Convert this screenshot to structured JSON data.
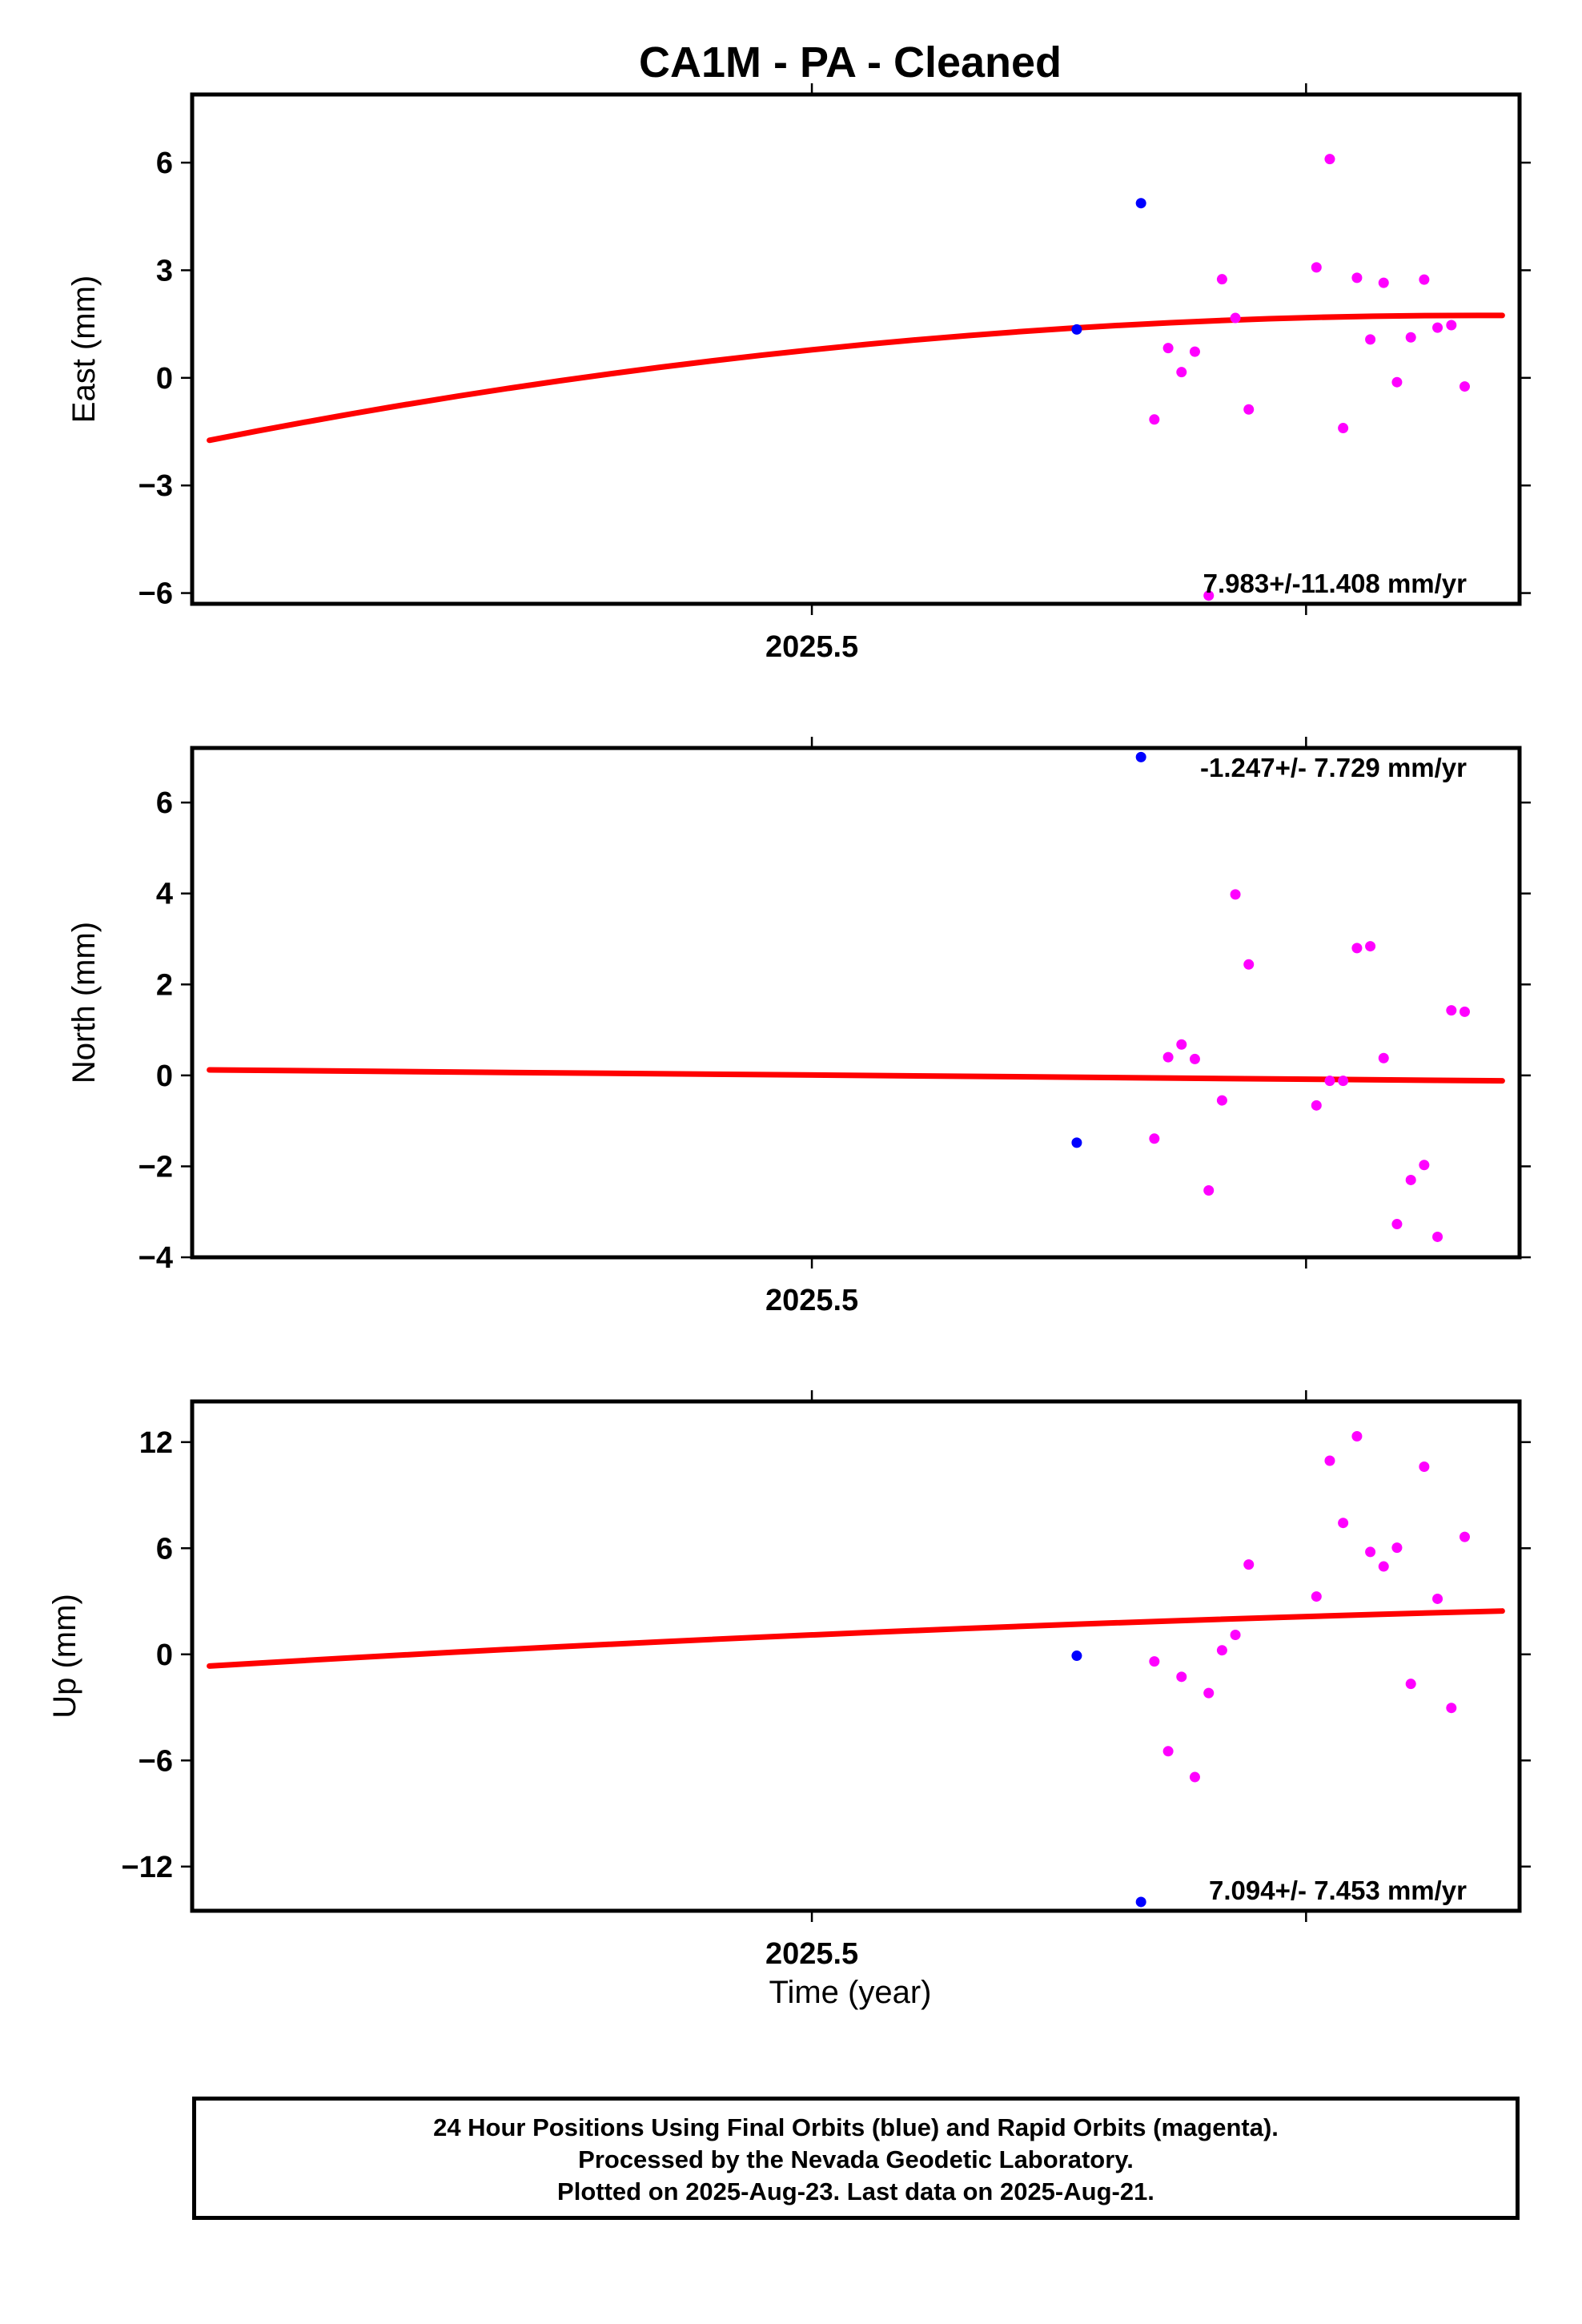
{
  "title": "CA1M  - PA - Cleaned",
  "xlabel": "Time (year)",
  "footer": {
    "line1": "24 Hour Positions Using Final Orbits (blue) and Rapid Orbits (magenta).",
    "line2": "Processed by the Nevada Geodetic Laboratory.",
    "line3": "Plotted on 2025-Aug-23. Last data on 2025-Aug-21."
  },
  "colors": {
    "final": "#0000ff",
    "rapid": "#ff00ff",
    "trend": "#ff0000",
    "frame": "#000000"
  },
  "chart_data": [
    {
      "type": "scatter",
      "ylabel": "East (mm)",
      "xlim": [
        2025.3746,
        2025.6432
      ],
      "ylim": [
        -6.3,
        7.9
      ],
      "yticks": [
        6,
        3,
        0,
        -3,
        -6
      ],
      "ytick_labels": [
        "6",
        "3",
        "0",
        "−3",
        "−6"
      ],
      "xticks": [
        2025.5,
        2025.6
      ],
      "xtick_labels": [
        "2025.5",
        ""
      ],
      "rate_label": "7.983+/-11.408 mm/yr",
      "rate_position": "bottom-right",
      "trend": {
        "x": [
          2025.3781,
          2025.6397
        ],
        "y": [
          -1.74,
          1.74
        ],
        "curvature": 0.52
      },
      "series": [
        {
          "orbit": "final",
          "points": [
            [
              2025.5536,
              1.35
            ],
            [
              2025.5666,
              4.87
            ]
          ]
        },
        {
          "orbit": "rapid",
          "points": [
            [
              2025.5693,
              -1.16
            ],
            [
              2025.5721,
              0.83
            ],
            [
              2025.5748,
              0.16
            ],
            [
              2025.5775,
              0.73
            ],
            [
              2025.5803,
              -6.07
            ],
            [
              2025.583,
              2.75
            ],
            [
              2025.5857,
              1.67
            ],
            [
              2025.5884,
              -0.88
            ],
            [
              2025.6021,
              3.08
            ],
            [
              2025.6048,
              6.1
            ],
            [
              2025.6075,
              -1.4
            ],
            [
              2025.6103,
              2.79
            ],
            [
              2025.613,
              1.07
            ],
            [
              2025.6157,
              2.65
            ],
            [
              2025.6184,
              -0.12
            ],
            [
              2025.6212,
              1.13
            ],
            [
              2025.6239,
              2.74
            ],
            [
              2025.6266,
              1.4
            ],
            [
              2025.6294,
              1.47
            ],
            [
              2025.6321,
              -0.24
            ]
          ]
        }
      ]
    },
    {
      "type": "scatter",
      "ylabel": "North (mm)",
      "xlim": [
        2025.3746,
        2025.6432
      ],
      "ylim": [
        -4.0,
        7.2
      ],
      "yticks": [
        6,
        4,
        2,
        0,
        -2,
        -4
      ],
      "ytick_labels": [
        "6",
        "4",
        "2",
        "0",
        "−2",
        "−4"
      ],
      "xticks": [
        2025.5,
        2025.6
      ],
      "xtick_labels": [
        "2025.5",
        ""
      ],
      "rate_label": "-1.247+/- 7.729 mm/yr",
      "rate_position": "top-right",
      "trend": {
        "x": [
          2025.3781,
          2025.6397
        ],
        "y": [
          0.12,
          -0.12
        ],
        "curvature": 0.2
      },
      "series": [
        {
          "orbit": "final",
          "points": [
            [
              2025.5536,
              -1.48
            ],
            [
              2025.5666,
              7.0
            ]
          ]
        },
        {
          "orbit": "rapid",
          "points": [
            [
              2025.5693,
              -1.39
            ],
            [
              2025.5721,
              0.4
            ],
            [
              2025.5748,
              0.68
            ],
            [
              2025.5775,
              0.36
            ],
            [
              2025.5803,
              -2.53
            ],
            [
              2025.583,
              -0.55
            ],
            [
              2025.5857,
              3.98
            ],
            [
              2025.5884,
              2.44
            ],
            [
              2025.6021,
              -0.66
            ],
            [
              2025.6048,
              -0.12
            ],
            [
              2025.6075,
              -0.12
            ],
            [
              2025.6103,
              2.8
            ],
            [
              2025.613,
              2.84
            ],
            [
              2025.6157,
              0.38
            ],
            [
              2025.6184,
              -3.27
            ],
            [
              2025.6212,
              -2.3
            ],
            [
              2025.6239,
              -1.97
            ],
            [
              2025.6266,
              -3.55
            ],
            [
              2025.6294,
              1.43
            ],
            [
              2025.6321,
              1.4
            ]
          ]
        }
      ]
    },
    {
      "type": "scatter",
      "ylabel": "Up (mm)",
      "xlim": [
        2025.3746,
        2025.6432
      ],
      "ylim": [
        -14.5,
        14.3
      ],
      "yticks": [
        12,
        6,
        0,
        -6,
        -12
      ],
      "ytick_labels": [
        "12",
        "6",
        "0",
        "−6",
        "−12"
      ],
      "xticks": [
        2025.5,
        2025.6
      ],
      "xtick_labels": [
        "2025.5",
        ""
      ],
      "rate_label": "7.094+/- 7.453 mm/yr",
      "rate_position": "bottom-right",
      "trend": {
        "x": [
          2025.3781,
          2025.6397
        ],
        "y": [
          -0.66,
          2.45
        ],
        "curvature": 0.2
      },
      "series": [
        {
          "orbit": "final",
          "points": [
            [
              2025.5536,
              -0.08
            ],
            [
              2025.5666,
              -14.0
            ]
          ]
        },
        {
          "orbit": "rapid",
          "points": [
            [
              2025.5693,
              -0.4
            ],
            [
              2025.5721,
              -5.48
            ],
            [
              2025.5748,
              -1.27
            ],
            [
              2025.5775,
              -6.94
            ],
            [
              2025.5803,
              -2.19
            ],
            [
              2025.583,
              0.23
            ],
            [
              2025.5857,
              1.1
            ],
            [
              2025.5884,
              5.08
            ],
            [
              2025.6021,
              3.27
            ],
            [
              2025.6048,
              10.95
            ],
            [
              2025.6075,
              7.43
            ],
            [
              2025.6103,
              12.33
            ],
            [
              2025.613,
              5.79
            ],
            [
              2025.6157,
              4.97
            ],
            [
              2025.6184,
              6.03
            ],
            [
              2025.6212,
              -1.67
            ],
            [
              2025.6239,
              10.61
            ],
            [
              2025.6266,
              3.14
            ],
            [
              2025.6294,
              -3.03
            ],
            [
              2025.6321,
              6.64
            ]
          ]
        }
      ]
    }
  ]
}
